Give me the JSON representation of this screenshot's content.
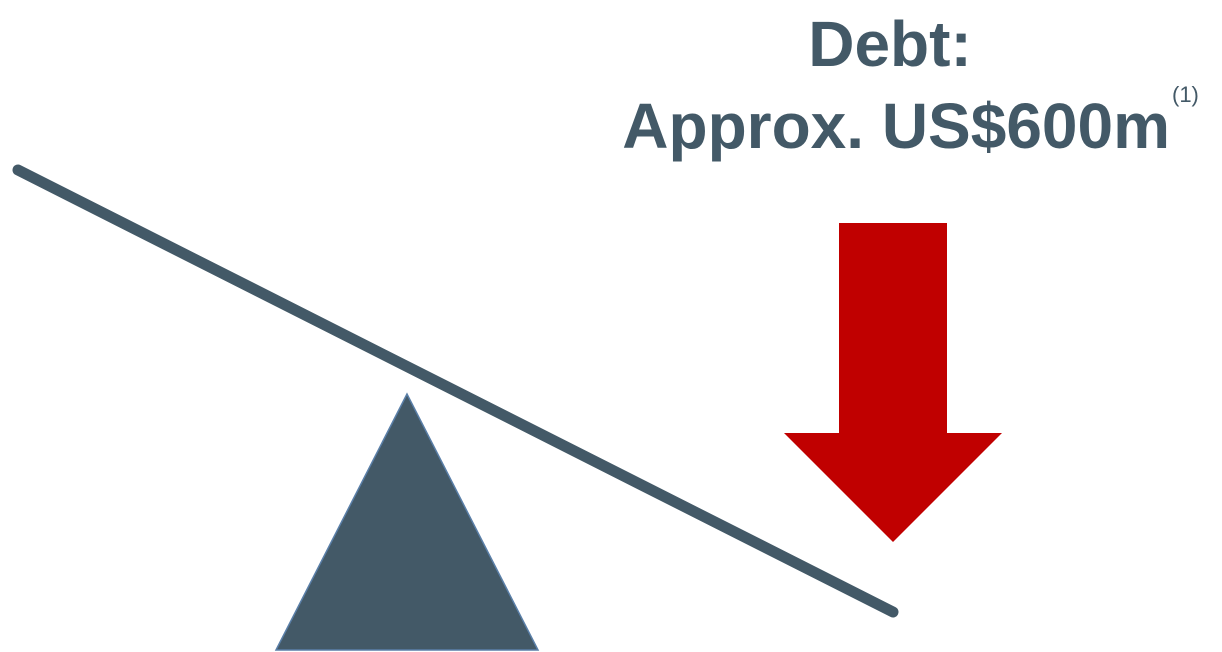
{
  "heading": {
    "line1": "Debt:",
    "line2": "Approx. US$600m",
    "footnote": "(1)"
  }
}
